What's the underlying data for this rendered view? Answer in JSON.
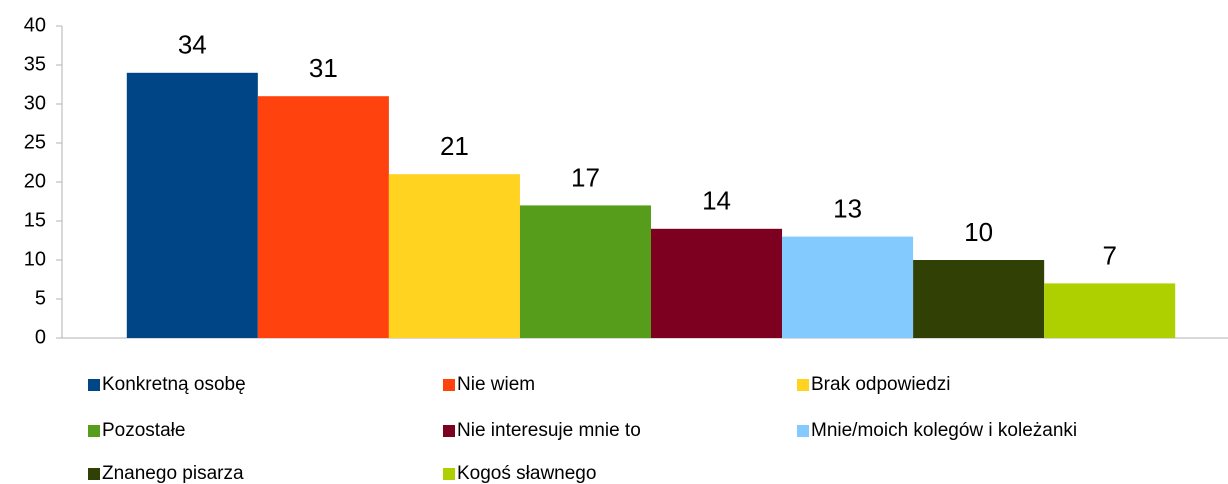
{
  "chart_data": {
    "type": "bar",
    "categories": [
      null
    ],
    "series": [
      {
        "name": "Konkretną osobę",
        "color": "#004586",
        "values": [
          34
        ]
      },
      {
        "name": "Nie wiem",
        "color": "#ff420e",
        "values": [
          31
        ]
      },
      {
        "name": "Brak odpowiedzi",
        "color": "#ffd320",
        "values": [
          21
        ]
      },
      {
        "name": "Pozostałe",
        "color": "#579d1c",
        "values": [
          17
        ]
      },
      {
        "name": "Nie interesuje mnie to",
        "color": "#7e0021",
        "values": [
          14
        ]
      },
      {
        "name": "Mnie/moich kolegów i koleżanki",
        "color": "#83caff",
        "values": [
          13
        ]
      },
      {
        "name": "Znanego pisarza",
        "color": "#314004",
        "values": [
          10
        ]
      },
      {
        "name": "Kogoś sławnego",
        "color": "#aecf00",
        "values": [
          7
        ]
      }
    ],
    "ylim": [
      0,
      40
    ],
    "yticks": [
      0,
      5,
      10,
      15,
      20,
      25,
      30,
      35,
      40
    ],
    "grid": false,
    "legend": "bottom"
  }
}
